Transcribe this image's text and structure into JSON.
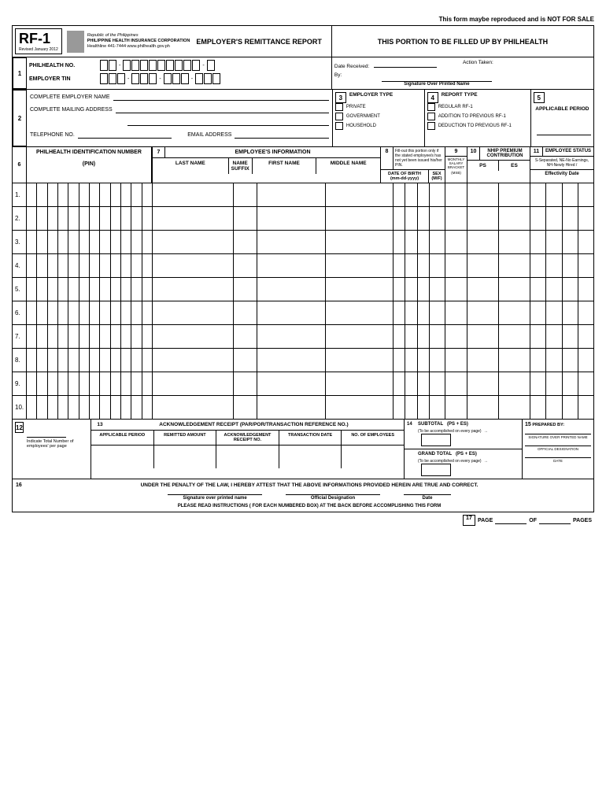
{
  "top_note": "This form maybe reproduced and is NOT FOR SALE",
  "form_code": "RF-1",
  "form_revised": "Revised January 2012",
  "republic": "Republic of the Philippines",
  "corp": "PHILIPPINE HEALTH INSURANCE CORPORATION",
  "healthline": "Healthline 441-7444 www.philhealth.gov.ph",
  "title": "EMPLOYER'S REMITTANCE REPORT",
  "philhealth_portion": "THIS PORTION TO BE FILLED UP BY PHILHEALTH",
  "sec1": {
    "philhealth_no": "PHILHEALTH NO.",
    "employer_tin": "EMPLOYER TIN",
    "date_received": "Date Received:",
    "action_taken": "Action Taken:",
    "by": "By:",
    "sig_label": "Signature Over Printed Name"
  },
  "sec2": {
    "employer_name": "COMPLETE EMPLOYER NAME",
    "mailing_address": "COMPLETE MAILING ADDRESS",
    "telephone": "TELEPHONE NO.",
    "email": "EMAIL ADDRESS"
  },
  "sec3": {
    "title": "EMPLOYER TYPE",
    "opt1": "PRIVATE",
    "opt2": "GOVERNMENT",
    "opt3": "HOUSEHOLD"
  },
  "sec4": {
    "title": "REPORT TYPE",
    "opt1": "REGULAR RF-1",
    "opt2": "ADDITION TO PREVIOUS RF-1",
    "opt3": "DEDUCTION TO PREVIOUS RF-1"
  },
  "sec5": {
    "title": "APPLICABLE PERIOD"
  },
  "sec6": {
    "title": "PHILHEALTH IDENTIFICATION NUMBER",
    "sub": "(PIN)"
  },
  "sec7": {
    "title": "EMPLOYEE'S INFORMATION",
    "last": "LAST NAME",
    "suffix": "NAME SUFFIX",
    "first": "FIRST NAME",
    "middle": "MIDDLE NAME"
  },
  "sec8": {
    "note": "Fill-out this portion only if the stated employee/s has not yet been issued his/her PIN.",
    "dob": "DATE OF BIRTH",
    "dob_fmt": "(mm-dd-yyyy)",
    "sex": "SEX",
    "sex_fmt": "(M/F)"
  },
  "sec9": {
    "title": "MONTHLY SALARY BRACKET",
    "sub": "(MSB)"
  },
  "sec10": {
    "title": "NHIP PREMIUM CONTRIBUTION",
    "ps": "PS",
    "es": "ES"
  },
  "sec11": {
    "title": "EMPLOYEE STATUS",
    "note": "S-Separated, NE-No Earnings, NH-Newly Hired /",
    "eff": "Effectivity Date"
  },
  "row_numbers": [
    1,
    2,
    3,
    4,
    5,
    6,
    7,
    8,
    9,
    10
  ],
  "sec12": {
    "label": "Indicate Total Number of employees' per page"
  },
  "sec13": {
    "title": "ACKNOWLEDGEMENT RECEIPT (PAR/POR/TRANSACTION REFERENCE NO.)",
    "c1": "APPLICABLE PERIOD",
    "c2": "REMITTED AMOUNT",
    "c3": "ACKNOWLEDGEMENT RECEIPT NO.",
    "c4": "TRANSACTION DATE",
    "c5": "NO. OF EMPLOYEES"
  },
  "sec14": {
    "subtotal": "SUBTOTAL",
    "pses": "(PS + ES)",
    "note": "(To be accomplished on every page)",
    "grand": "GRAND TOTAL",
    "arrow": "→"
  },
  "sec15": {
    "title": "PREPARED BY:",
    "l1": "SIGNATURE OVER PRINTED NAME",
    "l2": "OFFICIAL DESIGNATION",
    "l3": "DATE"
  },
  "sec16": {
    "attest": "UNDER THE PENALTY OF THE LAW, I HEREBY ATTEST THAT THE ABOVE INFORMATIONS PROVIDED HEREIN ARE TRUE AND CORRECT.",
    "sig1": "Signature over printed name",
    "sig2": "Official Designation",
    "sig3": "Date",
    "instruct": "PLEASE READ INSTRUCTIONS ( FOR EACH NUMBERED BOX) AT THE BACK BEFORE ACCOMPLISHING THIS FORM"
  },
  "footer": {
    "page": "PAGE",
    "of": "OF",
    "pages": "PAGES"
  }
}
